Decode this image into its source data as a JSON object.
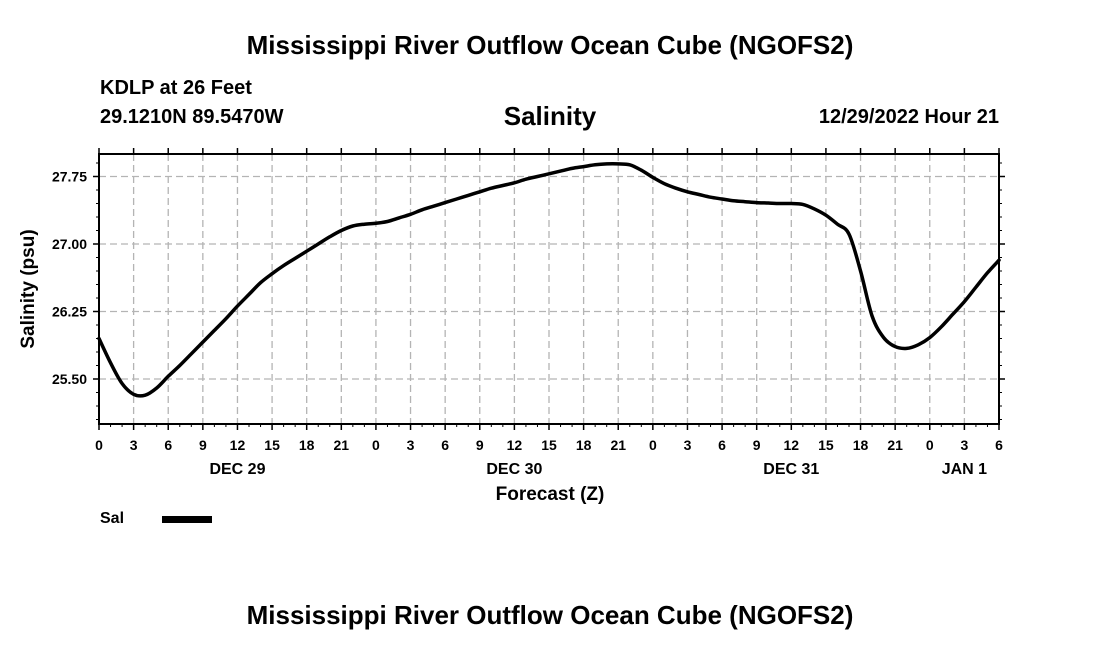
{
  "header": {
    "title": "Mississippi River Outflow Ocean Cube (NGOFS2)",
    "station": "KDLP at 26 Feet",
    "coords": "29.1210N  89.5470W",
    "chart_title": "Salinity",
    "timestamp": "12/29/2022 Hour 21"
  },
  "footer": {
    "title": "Mississippi River Outflow Ocean Cube (NGOFS2)"
  },
  "legend": {
    "label": "Sal",
    "color": "#000000"
  },
  "chart_data": {
    "type": "line",
    "title": "Salinity",
    "xlabel": "Forecast (Z)",
    "ylabel": "Salinity (psu)",
    "x_unit": "hours since 2022-12-29 00Z",
    "xlim": [
      0,
      78
    ],
    "ylim": [
      25.0,
      28.0
    ],
    "yticks": [
      25.5,
      26.25,
      27.0,
      27.75
    ],
    "ytick_labels": [
      "25.50",
      "26.25",
      "27.00",
      "27.75"
    ],
    "xticks": [
      0,
      3,
      6,
      9,
      12,
      15,
      18,
      21,
      24,
      27,
      30,
      33,
      36,
      39,
      42,
      45,
      48,
      51,
      54,
      57,
      60,
      63,
      66,
      69,
      72,
      75,
      78
    ],
    "xtick_labels": [
      "0",
      "3",
      "6",
      "9",
      "12",
      "15",
      "18",
      "21",
      "0",
      "3",
      "6",
      "9",
      "12",
      "15",
      "18",
      "21",
      "0",
      "3",
      "6",
      "9",
      "12",
      "15",
      "18",
      "21",
      "0",
      "3",
      "6"
    ],
    "day_labels": [
      {
        "x": 12,
        "label": "DEC 29"
      },
      {
        "x": 36,
        "label": "DEC 30"
      },
      {
        "x": 60,
        "label": "DEC 31"
      },
      {
        "x": 75,
        "label": "JAN 1"
      }
    ],
    "grid": true,
    "legend_position": "bottom-left",
    "series": [
      {
        "name": "Sal",
        "color": "#000000",
        "x": [
          0,
          1,
          2,
          3,
          4,
          5,
          6,
          7,
          8,
          9,
          10,
          11,
          12,
          13,
          14,
          15,
          16,
          17,
          18,
          19,
          20,
          21,
          22,
          23,
          24,
          25,
          26,
          27,
          28,
          29,
          30,
          31,
          32,
          33,
          34,
          35,
          36,
          37,
          38,
          39,
          40,
          41,
          42,
          43,
          44,
          45,
          46,
          47,
          48,
          49,
          50,
          51,
          52,
          53,
          54,
          55,
          56,
          57,
          58,
          59,
          60,
          61,
          62,
          63,
          64,
          65,
          66,
          67,
          68,
          69,
          70,
          71,
          72,
          73,
          74,
          75,
          76,
          77,
          78
        ],
        "values": [
          25.95,
          25.68,
          25.45,
          25.33,
          25.32,
          25.4,
          25.53,
          25.65,
          25.78,
          25.91,
          26.04,
          26.17,
          26.31,
          26.44,
          26.57,
          26.67,
          26.76,
          26.84,
          26.92,
          27.0,
          27.08,
          27.15,
          27.2,
          27.22,
          27.23,
          27.25,
          27.29,
          27.33,
          27.38,
          27.42,
          27.46,
          27.5,
          27.54,
          27.58,
          27.62,
          27.65,
          27.68,
          27.72,
          27.75,
          27.78,
          27.81,
          27.84,
          27.86,
          27.88,
          27.89,
          27.89,
          27.88,
          27.82,
          27.74,
          27.67,
          27.62,
          27.58,
          27.55,
          27.52,
          27.5,
          27.48,
          27.47,
          27.46,
          27.455,
          27.45,
          27.45,
          27.44,
          27.39,
          27.32,
          27.22,
          27.11,
          26.7,
          26.2,
          25.96,
          25.86,
          25.84,
          25.88,
          25.96,
          26.08,
          26.22,
          26.36,
          26.52,
          26.68,
          26.82
        ]
      }
    ]
  }
}
